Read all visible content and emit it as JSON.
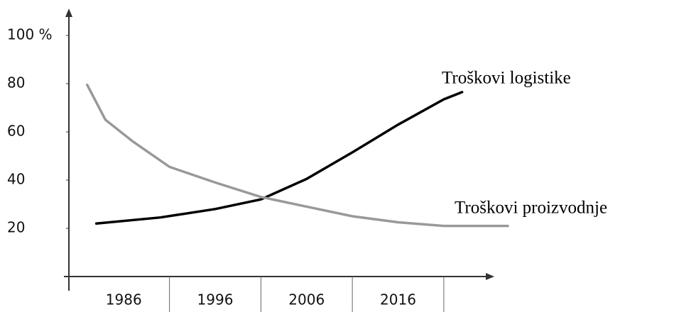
{
  "chart_data": {
    "type": "line",
    "xticks": [
      1986,
      1996,
      2006,
      2016
    ],
    "xlim": [
      1980,
      2028
    ],
    "ylim": [
      0,
      100
    ],
    "yticks": [
      20,
      40,
      60,
      80,
      {
        "value": 100,
        "label": "100 %"
      }
    ],
    "series": [
      {
        "name": "Troškovi logistike",
        "color": "#000000",
        "x": [
          1983,
          1990,
          1996,
          2001,
          2006,
          2011,
          2016,
          2021,
          2023
        ],
        "values": [
          22,
          24.5,
          28,
          32,
          40.5,
          51.5,
          63,
          73.5,
          76.5
        ]
      },
      {
        "name": "Troškovi proizvodnje",
        "color": "#999999",
        "x": [
          1982,
          1984,
          1987,
          1991,
          1996,
          2001,
          2006,
          2011,
          2016,
          2021,
          2028
        ],
        "values": [
          79.5,
          65,
          56,
          45.5,
          39,
          33,
          29,
          25,
          22.5,
          21,
          21
        ]
      }
    ]
  }
}
